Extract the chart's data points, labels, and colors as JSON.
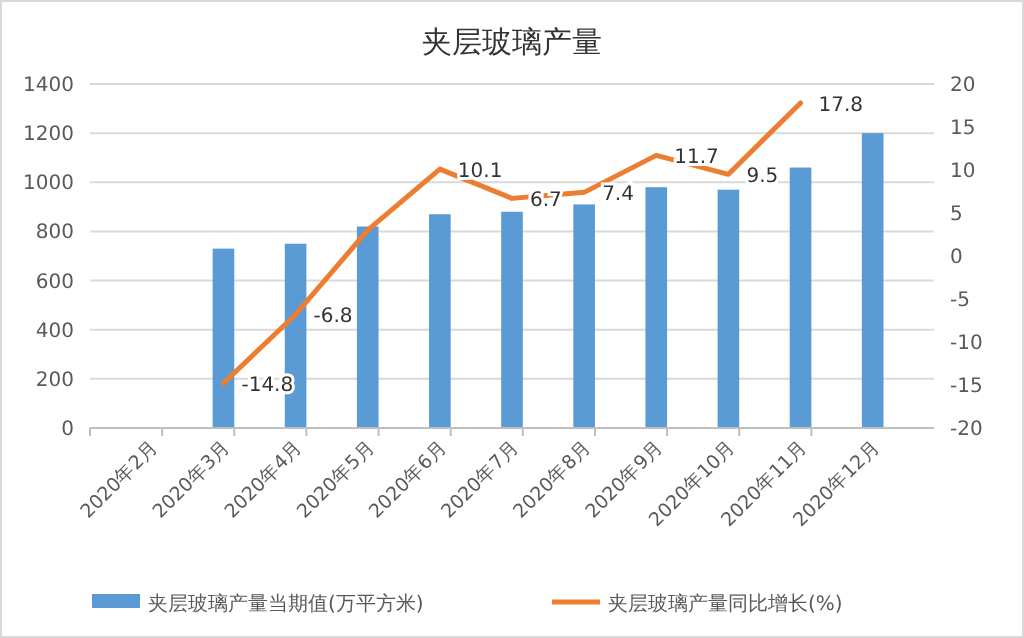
{
  "chart_data": {
    "type": "bar",
    "title": "夹层玻璃产量",
    "categories": [
      "2020年2月",
      "2020年3月",
      "2020年4月",
      "2020年5月",
      "2020年6月",
      "2020年7月",
      "2020年8月",
      "2020年9月",
      "2020年10月",
      "2020年11月",
      "2020年12月"
    ],
    "series": [
      {
        "name": "夹层玻璃产量当期值(万平方米)",
        "color": "#5b9bd5",
        "values": [
          null,
          730,
          750,
          820,
          870,
          880,
          910,
          980,
          970,
          1060,
          1200
        ]
      },
      {
        "name": "夹层玻璃产量同比增长(%)",
        "type": "line",
        "axis": "y2",
        "color": "#ed7d31",
        "values": [
          null,
          -14.8,
          -6.8,
          3,
          10.1,
          6.7,
          7.4,
          11.7,
          9.5,
          17.8,
          null
        ],
        "value_labels": [
          null,
          "-14.8",
          "-6.8",
          null,
          "10.1",
          "6.7",
          "7.4",
          "11.7",
          "9.5",
          "17.8",
          null
        ]
      }
    ],
    "ylim": [
      0,
      1400
    ],
    "yticks": [
      0,
      200,
      400,
      600,
      800,
      1000,
      1200,
      1400
    ],
    "y2lim": [
      -20,
      20
    ],
    "y2ticks": [
      -20,
      -15,
      -10,
      -5,
      0,
      5,
      10,
      15,
      20
    ],
    "grid": "y",
    "legend": "bottom",
    "marker": "none",
    "line_style": "solid"
  }
}
